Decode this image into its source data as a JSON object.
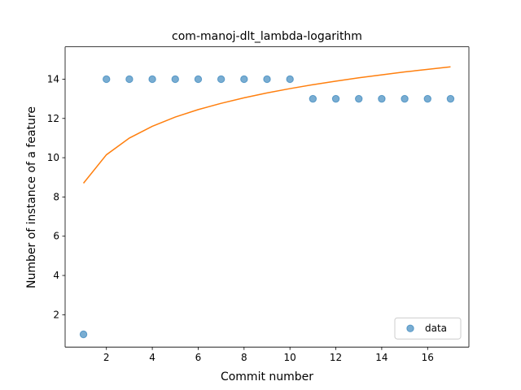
{
  "chart_data": {
    "type": "scatter",
    "title": "com-manoj-dlt_lambda-logarithm",
    "xlabel": "Commit number",
    "ylabel": "Number of instance of a feature",
    "xlim": [
      0.2,
      17.8
    ],
    "ylim": [
      0.35,
      15.65
    ],
    "xticks": [
      2,
      4,
      6,
      8,
      10,
      12,
      14,
      16
    ],
    "yticks": [
      2,
      4,
      6,
      8,
      10,
      12,
      14
    ],
    "grid": false,
    "legend_position": "lower right",
    "series": [
      {
        "name": "data",
        "kind": "points",
        "color": "#1f77b4",
        "x": [
          1,
          2,
          3,
          4,
          5,
          6,
          7,
          8,
          9,
          10,
          11,
          12,
          13,
          14,
          15,
          16,
          17
        ],
        "y": [
          1,
          14,
          14,
          14,
          14,
          14,
          14,
          14,
          14,
          14,
          13,
          13,
          13,
          13,
          13,
          13,
          13
        ]
      },
      {
        "kind": "line",
        "color": "#ff7f0e",
        "x": [
          1,
          2,
          3,
          4,
          5,
          6,
          7,
          8,
          9,
          10,
          11,
          12,
          13,
          14,
          15,
          16,
          17
        ],
        "y": [
          8.7,
          10.15,
          11.0,
          11.6,
          12.07,
          12.45,
          12.77,
          13.05,
          13.3,
          13.52,
          13.72,
          13.9,
          14.07,
          14.22,
          14.37,
          14.5,
          14.63
        ]
      }
    ]
  }
}
